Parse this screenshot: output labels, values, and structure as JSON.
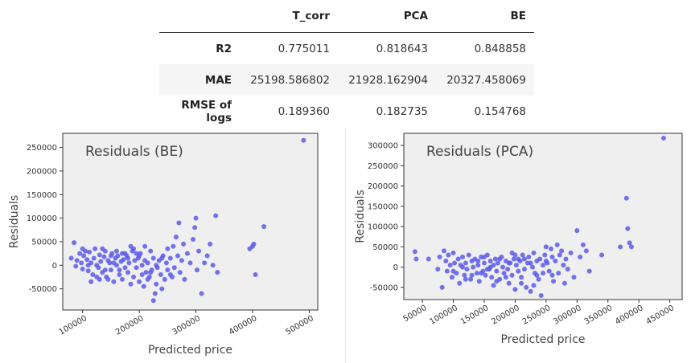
{
  "table": {
    "columns": [
      "",
      "T_corr",
      "PCA",
      "BE"
    ],
    "rows": [
      {
        "label": "R2",
        "values": [
          "0.775011",
          "0.818643",
          "0.848858"
        ]
      },
      {
        "label": "MAE",
        "values": [
          "25198.586802",
          "21928.162904",
          "20327.458069"
        ]
      },
      {
        "label": "RMSE of logs",
        "values": [
          "0.189360",
          "0.182735",
          "0.154768"
        ]
      }
    ]
  },
  "chart_data": [
    {
      "type": "scatter",
      "title": "Residuals (BE)",
      "xlabel": "Predicted price",
      "ylabel": "Residuals",
      "xlim": [
        65000,
        515000
      ],
      "ylim": [
        -95000,
        280000
      ],
      "xticks": [
        100000,
        200000,
        300000,
        400000,
        500000
      ],
      "yticks": [
        -50000,
        0,
        50000,
        100000,
        150000,
        200000,
        250000
      ],
      "grid": false,
      "marker_color": "#5b5bea",
      "plot_background": "#efefef",
      "points": [
        [
          80000,
          15000
        ],
        [
          85000,
          48000
        ],
        [
          88000,
          -2000
        ],
        [
          90000,
          10000
        ],
        [
          95000,
          25000
        ],
        [
          98000,
          5000
        ],
        [
          100000,
          -8000
        ],
        [
          102000,
          20000
        ],
        [
          105000,
          30000
        ],
        [
          108000,
          12000
        ],
        [
          110000,
          -12000
        ],
        [
          112000,
          28000
        ],
        [
          115000,
          5000
        ],
        [
          118000,
          -20000
        ],
        [
          120000,
          15000
        ],
        [
          122000,
          35000
        ],
        [
          125000,
          0
        ],
        [
          128000,
          -5000
        ],
        [
          130000,
          22000
        ],
        [
          132000,
          8000
        ],
        [
          135000,
          -15000
        ],
        [
          138000,
          18000
        ],
        [
          140000,
          30000
        ],
        [
          142000,
          -25000
        ],
        [
          145000,
          10000
        ],
        [
          148000,
          5000
        ],
        [
          150000,
          -10000
        ],
        [
          152000,
          25000
        ],
        [
          155000,
          -35000
        ],
        [
          158000,
          15000
        ],
        [
          160000,
          0
        ],
        [
          162000,
          20000
        ],
        [
          165000,
          -20000
        ],
        [
          168000,
          8000
        ],
        [
          170000,
          -30000
        ],
        [
          172000,
          12000
        ],
        [
          175000,
          -5000
        ],
        [
          178000,
          20000
        ],
        [
          180000,
          -15000
        ],
        [
          182000,
          5000
        ],
        [
          185000,
          40000
        ],
        [
          188000,
          30000
        ],
        [
          190000,
          -25000
        ],
        [
          192000,
          10000
        ],
        [
          195000,
          -5000
        ],
        [
          198000,
          15000
        ],
        [
          200000,
          -35000
        ],
        [
          202000,
          25000
        ],
        [
          205000,
          0
        ],
        [
          208000,
          -45000
        ],
        [
          210000,
          10000
        ],
        [
          212000,
          -15000
        ],
        [
          215000,
          5000
        ],
        [
          218000,
          -25000
        ],
        [
          220000,
          30000
        ],
        [
          222000,
          -10000
        ],
        [
          225000,
          15000
        ],
        [
          228000,
          -60000
        ],
        [
          230000,
          0
        ],
        [
          232000,
          -5000
        ],
        [
          235000,
          10000
        ],
        [
          238000,
          -20000
        ],
        [
          240000,
          -50000
        ],
        [
          242000,
          20000
        ],
        [
          245000,
          -30000
        ],
        [
          248000,
          5000
        ],
        [
          250000,
          -10000
        ],
        [
          255000,
          15000
        ],
        [
          258000,
          -25000
        ],
        [
          260000,
          40000
        ],
        [
          262000,
          -5000
        ],
        [
          265000,
          60000
        ],
        [
          268000,
          20000
        ],
        [
          270000,
          90000
        ],
        [
          272000,
          -15000
        ],
        [
          275000,
          10000
        ],
        [
          278000,
          45000
        ],
        [
          280000,
          -30000
        ],
        [
          285000,
          25000
        ],
        [
          290000,
          5000
        ],
        [
          295000,
          55000
        ],
        [
          298000,
          80000
        ],
        [
          300000,
          100000
        ],
        [
          302000,
          -10000
        ],
        [
          305000,
          30000
        ],
        [
          310000,
          -60000
        ],
        [
          315000,
          5000
        ],
        [
          320000,
          20000
        ],
        [
          325000,
          45000
        ],
        [
          330000,
          0
        ],
        [
          335000,
          105000
        ],
        [
          338000,
          -15000
        ],
        [
          395000,
          35000
        ],
        [
          400000,
          40000
        ],
        [
          402000,
          45000
        ],
        [
          405000,
          -20000
        ],
        [
          420000,
          82000
        ],
        [
          490000,
          265000
        ],
        [
          225000,
          -75000
        ],
        [
          200000,
          20000
        ],
        [
          180000,
          15000
        ],
        [
          160000,
          30000
        ],
        [
          145000,
          -30000
        ],
        [
          115000,
          -35000
        ],
        [
          250000,
          35000
        ],
        [
          215000,
          -30000
        ],
        [
          170000,
          25000
        ],
        [
          125000,
          -25000
        ],
        [
          135000,
          35000
        ],
        [
          190000,
          35000
        ],
        [
          205000,
          -20000
        ],
        [
          230000,
          -40000
        ],
        [
          150000,
          20000
        ],
        [
          110000,
          0
        ],
        [
          165000,
          -10000
        ],
        [
          195000,
          25000
        ],
        [
          240000,
          15000
        ],
        [
          220000,
          -15000
        ],
        [
          255000,
          -20000
        ],
        [
          185000,
          -40000
        ],
        [
          175000,
          25000
        ],
        [
          140000,
          -10000
        ],
        [
          210000,
          40000
        ],
        [
          100000,
          35000
        ],
        [
          130000,
          -30000
        ],
        [
          155000,
          5000
        ]
      ]
    },
    {
      "type": "scatter",
      "title": "Residuals (PCA)",
      "xlabel": "Predicted price",
      "ylabel": "Residuals",
      "xlim": [
        20000,
        470000
      ],
      "ylim": [
        -80000,
        330000
      ],
      "xticks": [
        50000,
        100000,
        150000,
        200000,
        250000,
        300000,
        350000,
        400000,
        450000
      ],
      "yticks": [
        -50000,
        0,
        50000,
        100000,
        150000,
        200000,
        250000,
        300000
      ],
      "grid": false,
      "marker_color": "#5b5bea",
      "plot_background": "#efefef",
      "points": [
        [
          38000,
          38000
        ],
        [
          40000,
          20000
        ],
        [
          60000,
          20000
        ],
        [
          75000,
          -5000
        ],
        [
          78000,
          25000
        ],
        [
          82000,
          -50000
        ],
        [
          85000,
          40000
        ],
        [
          88000,
          15000
        ],
        [
          90000,
          -10000
        ],
        [
          92000,
          30000
        ],
        [
          95000,
          5000
        ],
        [
          98000,
          -25000
        ],
        [
          100000,
          35000
        ],
        [
          102000,
          10000
        ],
        [
          105000,
          -15000
        ],
        [
          108000,
          20000
        ],
        [
          110000,
          -40000
        ],
        [
          112000,
          5000
        ],
        [
          115000,
          25000
        ],
        [
          118000,
          -20000
        ],
        [
          120000,
          10000
        ],
        [
          122000,
          -5000
        ],
        [
          125000,
          30000
        ],
        [
          128000,
          -30000
        ],
        [
          130000,
          15000
        ],
        [
          132000,
          0
        ],
        [
          135000,
          20000
        ],
        [
          138000,
          -15000
        ],
        [
          140000,
          5000
        ],
        [
          142000,
          -35000
        ],
        [
          145000,
          25000
        ],
        [
          148000,
          -10000
        ],
        [
          150000,
          10000
        ],
        [
          152000,
          -20000
        ],
        [
          155000,
          30000
        ],
        [
          158000,
          -5000
        ],
        [
          160000,
          15000
        ],
        [
          162000,
          -25000
        ],
        [
          165000,
          5000
        ],
        [
          168000,
          20000
        ],
        [
          170000,
          -10000
        ],
        [
          172000,
          10000
        ],
        [
          175000,
          -30000
        ],
        [
          178000,
          25000
        ],
        [
          180000,
          0
        ],
        [
          182000,
          -15000
        ],
        [
          185000,
          15000
        ],
        [
          188000,
          -5000
        ],
        [
          190000,
          -40000
        ],
        [
          192000,
          10000
        ],
        [
          195000,
          -20000
        ],
        [
          198000,
          20000
        ],
        [
          200000,
          -55000
        ],
        [
          202000,
          5000
        ],
        [
          205000,
          -10000
        ],
        [
          208000,
          15000
        ],
        [
          210000,
          -25000
        ],
        [
          212000,
          30000
        ],
        [
          215000,
          -5000
        ],
        [
          218000,
          -50000
        ],
        [
          220000,
          10000
        ],
        [
          222000,
          25000
        ],
        [
          225000,
          -60000
        ],
        [
          228000,
          0
        ],
        [
          230000,
          35000
        ],
        [
          232000,
          -15000
        ],
        [
          235000,
          15000
        ],
        [
          238000,
          -30000
        ],
        [
          240000,
          20000
        ],
        [
          242000,
          -70000
        ],
        [
          245000,
          5000
        ],
        [
          248000,
          30000
        ],
        [
          250000,
          50000
        ],
        [
          252000,
          10000
        ],
        [
          255000,
          -10000
        ],
        [
          258000,
          45000
        ],
        [
          260000,
          25000
        ],
        [
          262000,
          -35000
        ],
        [
          265000,
          15000
        ],
        [
          268000,
          55000
        ],
        [
          270000,
          -15000
        ],
        [
          272000,
          30000
        ],
        [
          275000,
          40000
        ],
        [
          278000,
          5000
        ],
        [
          280000,
          -40000
        ],
        [
          282000,
          20000
        ],
        [
          285000,
          -5000
        ],
        [
          290000,
          35000
        ],
        [
          295000,
          -25000
        ],
        [
          300000,
          90000
        ],
        [
          305000,
          25000
        ],
        [
          310000,
          55000
        ],
        [
          315000,
          40000
        ],
        [
          320000,
          -10000
        ],
        [
          340000,
          30000
        ],
        [
          370000,
          50000
        ],
        [
          380000,
          170000
        ],
        [
          382000,
          95000
        ],
        [
          385000,
          60000
        ],
        [
          388000,
          50000
        ],
        [
          440000,
          318000
        ],
        [
          165000,
          -45000
        ],
        [
          145000,
          -15000
        ],
        [
          120000,
          -30000
        ],
        [
          195000,
          35000
        ],
        [
          210000,
          -40000
        ],
        [
          230000,
          -45000
        ],
        [
          175000,
          20000
        ],
        [
          150000,
          25000
        ],
        [
          130000,
          -20000
        ],
        [
          185000,
          -25000
        ],
        [
          215000,
          20000
        ],
        [
          100000,
          -10000
        ],
        [
          160000,
          0
        ],
        [
          200000,
          30000
        ],
        [
          235000,
          -20000
        ],
        [
          115000,
          0
        ],
        [
          170000,
          -35000
        ],
        [
          250000,
          15000
        ],
        [
          225000,
          10000
        ],
        [
          155000,
          -5000
        ],
        [
          190000,
          10000
        ],
        [
          140000,
          15000
        ],
        [
          205000,
          20000
        ],
        [
          260000,
          -20000
        ],
        [
          245000,
          -15000
        ]
      ]
    }
  ]
}
